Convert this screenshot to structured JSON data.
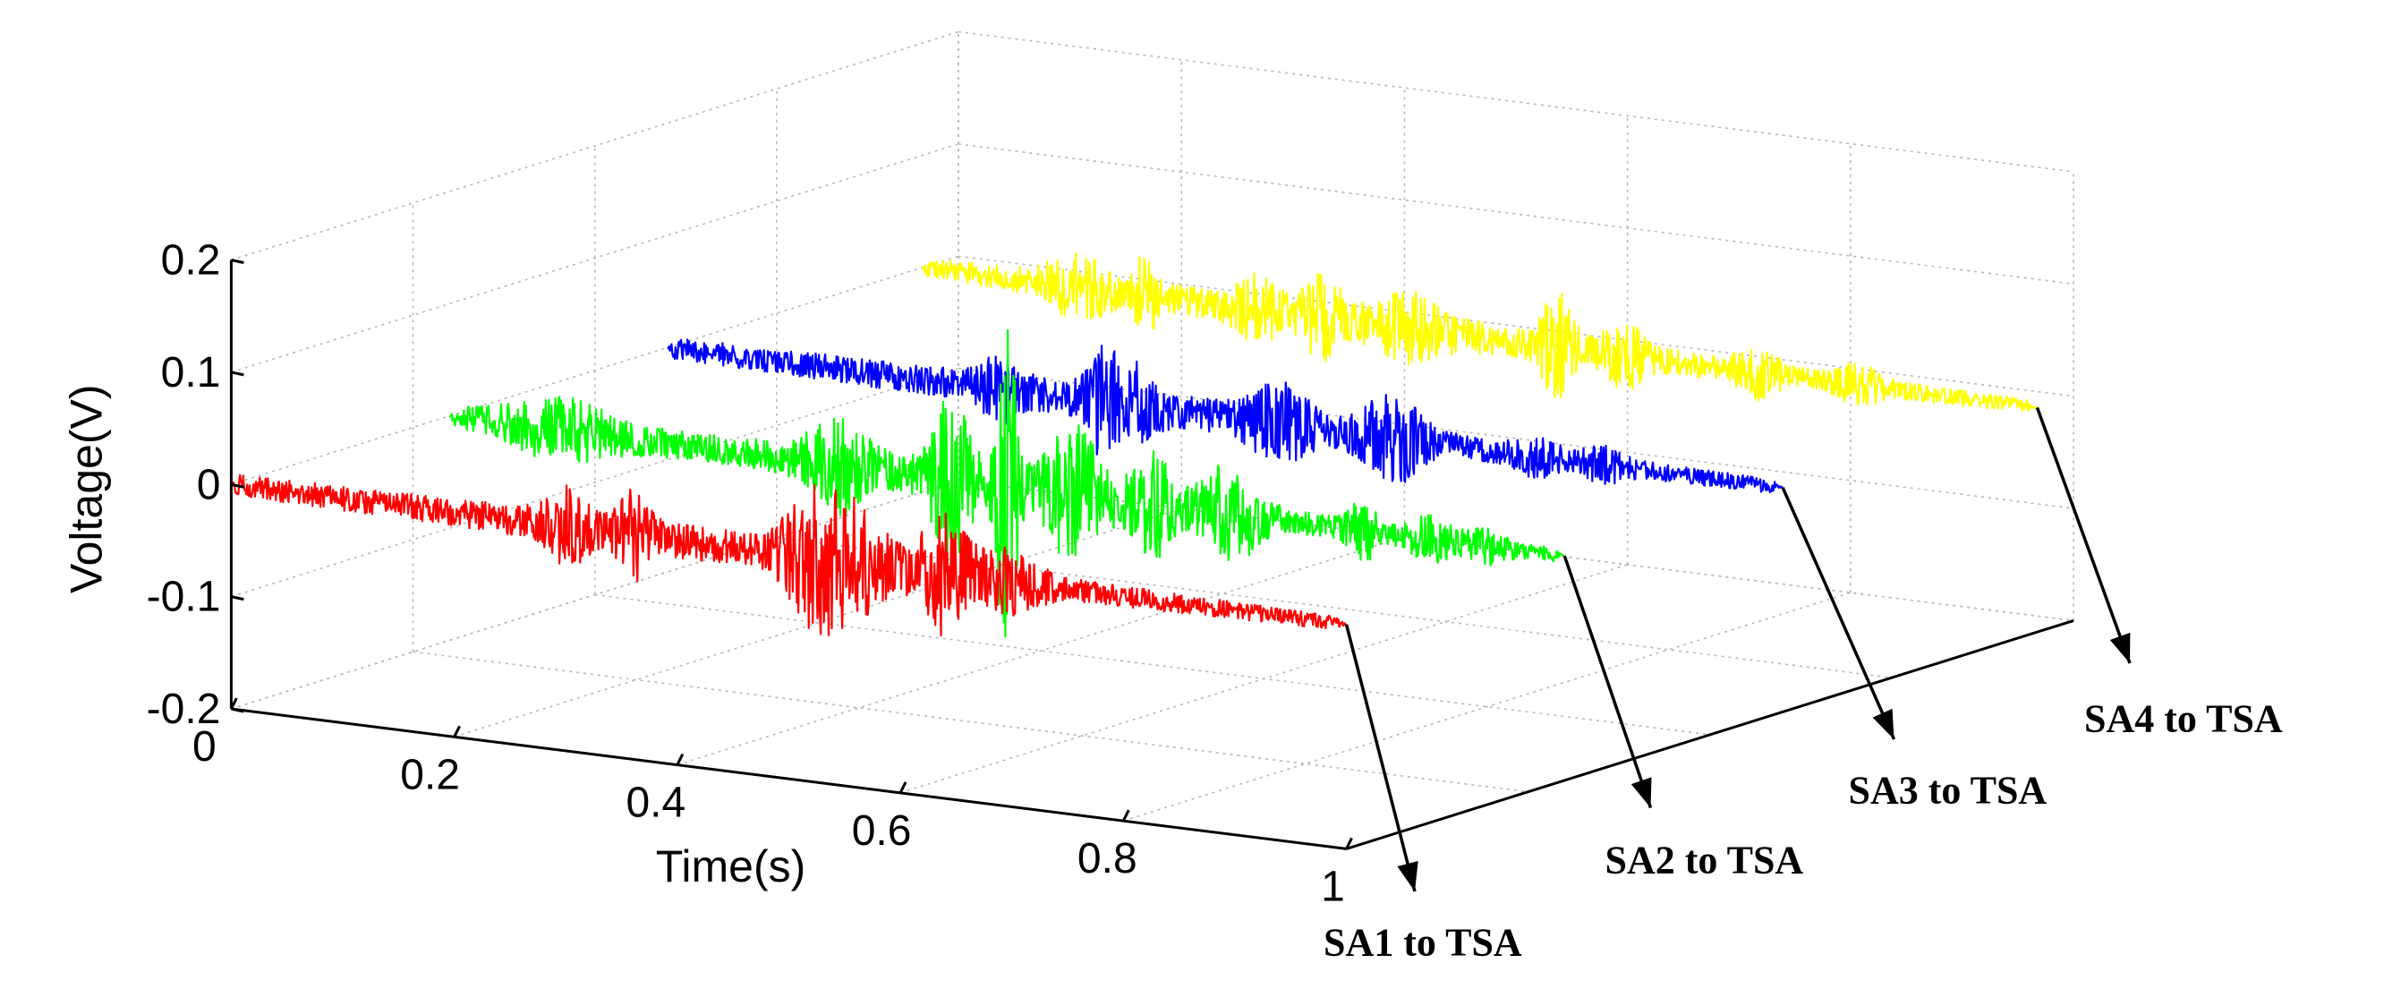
{
  "chart_data": {
    "type": "line",
    "projection": "3d-waterfall",
    "title": "",
    "xlabel": "Time(s)",
    "zlabel": "Voltage(V)",
    "xlim": [
      0,
      1
    ],
    "zlim": [
      -0.2,
      0.2
    ],
    "x_ticks": [
      "0",
      "0.2",
      "0.4",
      "0.6",
      "0.8",
      "1"
    ],
    "z_ticks": [
      "0.2",
      "0.1",
      "0",
      "-0.1",
      "-0.2"
    ],
    "series": [
      {
        "name": "SA1 to TSA",
        "color": "#ff0000",
        "bursts": [
          {
            "t": 0.3,
            "amp": 0.025,
            "width": 0.02
          },
          {
            "t": 0.36,
            "amp": 0.03,
            "width": 0.015
          },
          {
            "t": 0.52,
            "amp": 0.05,
            "width": 0.025
          },
          {
            "t": 0.56,
            "amp": 0.04,
            "width": 0.03
          },
          {
            "t": 0.64,
            "amp": 0.045,
            "width": 0.025
          },
          {
            "t": 0.7,
            "amp": 0.02,
            "width": 0.03
          }
        ]
      },
      {
        "name": "SA2 to TSA",
        "color": "#00ff00",
        "bursts": [
          {
            "t": 0.1,
            "amp": 0.02,
            "width": 0.05
          },
          {
            "t": 0.35,
            "amp": 0.03,
            "width": 0.03
          },
          {
            "t": 0.45,
            "amp": 0.06,
            "width": 0.02
          },
          {
            "t": 0.5,
            "amp": 0.14,
            "width": 0.01
          },
          {
            "t": 0.56,
            "amp": 0.05,
            "width": 0.03
          },
          {
            "t": 0.63,
            "amp": 0.04,
            "width": 0.02
          },
          {
            "t": 0.7,
            "amp": 0.035,
            "width": 0.03
          },
          {
            "t": 0.82,
            "amp": 0.02,
            "width": 0.015
          },
          {
            "t": 0.88,
            "amp": 0.015,
            "width": 0.02
          },
          {
            "t": 0.93,
            "amp": 0.01,
            "width": 0.02
          }
        ]
      },
      {
        "name": "SA3 to TSA",
        "color": "#0000ff",
        "bursts": [
          {
            "t": 0.3,
            "amp": 0.02,
            "width": 0.02
          },
          {
            "t": 0.39,
            "amp": 0.035,
            "width": 0.015
          },
          {
            "t": 0.42,
            "amp": 0.025,
            "width": 0.02
          },
          {
            "t": 0.55,
            "amp": 0.025,
            "width": 0.03
          },
          {
            "t": 0.65,
            "amp": 0.03,
            "width": 0.03
          },
          {
            "t": 0.78,
            "amp": 0.012,
            "width": 0.02
          },
          {
            "t": 0.84,
            "amp": 0.01,
            "width": 0.02
          }
        ]
      },
      {
        "name": "SA4 to TSA",
        "color": "#ffff00",
        "bursts": [
          {
            "t": 0.14,
            "amp": 0.02,
            "width": 0.03
          },
          {
            "t": 0.2,
            "amp": 0.03,
            "width": 0.01
          },
          {
            "t": 0.3,
            "amp": 0.02,
            "width": 0.02
          },
          {
            "t": 0.36,
            "amp": 0.025,
            "width": 0.02
          },
          {
            "t": 0.44,
            "amp": 0.02,
            "width": 0.03
          },
          {
            "t": 0.57,
            "amp": 0.04,
            "width": 0.015
          },
          {
            "t": 0.63,
            "amp": 0.02,
            "width": 0.02
          },
          {
            "t": 0.75,
            "amp": 0.015,
            "width": 0.02
          },
          {
            "t": 0.84,
            "amp": 0.012,
            "width": 0.02
          }
        ]
      }
    ]
  }
}
